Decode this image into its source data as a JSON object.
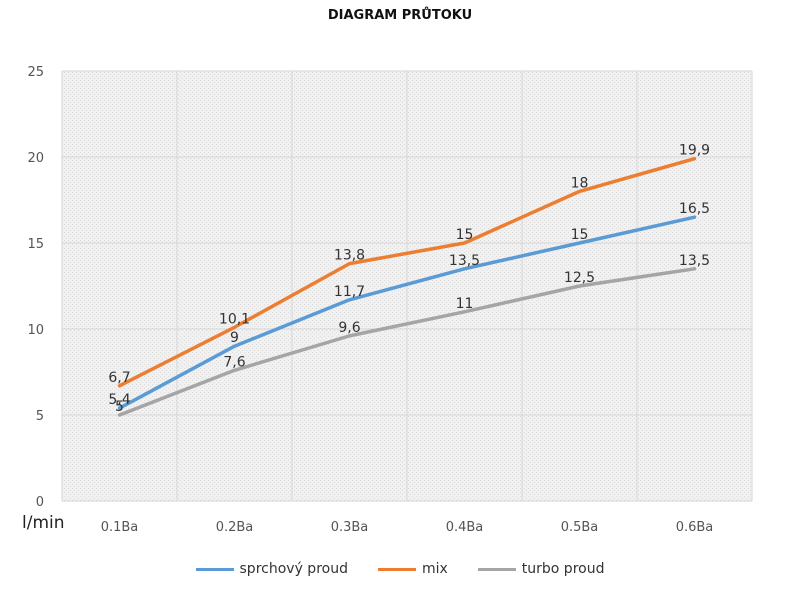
{
  "chart_data": {
    "type": "line",
    "title": "DIAGRAM PRŮTOKU",
    "ylabel": "l/min",
    "xlabel": "",
    "categories": [
      "0.1Ba",
      "0.2Ba",
      "0.3Ba",
      "0.4Ba",
      "0.5Ba",
      "0.6Ba"
    ],
    "ylim": [
      0,
      25
    ],
    "yticks": [
      "0",
      "5",
      "10",
      "15",
      "20",
      "25"
    ],
    "grid": true,
    "legend_position": "bottom",
    "series": [
      {
        "name": "sprchový proud",
        "color": "#5b9bd5",
        "values": [
          5.4,
          9,
          11.7,
          13.5,
          15,
          16.5
        ],
        "labels": [
          "5,4",
          "9",
          "11,7",
          "13,5",
          "15",
          "16,5"
        ]
      },
      {
        "name": "mix",
        "color": "#ed7d31",
        "values": [
          6.7,
          10.1,
          13.8,
          15,
          18,
          19.9
        ],
        "labels": [
          "6,7",
          "10,1",
          "13,8",
          "15",
          "18",
          "19,9"
        ]
      },
      {
        "name": "turbo proud",
        "color": "#a5a5a5",
        "values": [
          5,
          7.6,
          9.6,
          11,
          12.5,
          13.5
        ],
        "labels": [
          "5",
          "7,6",
          "9,6",
          "11",
          "12,5",
          "13,5"
        ]
      }
    ]
  }
}
